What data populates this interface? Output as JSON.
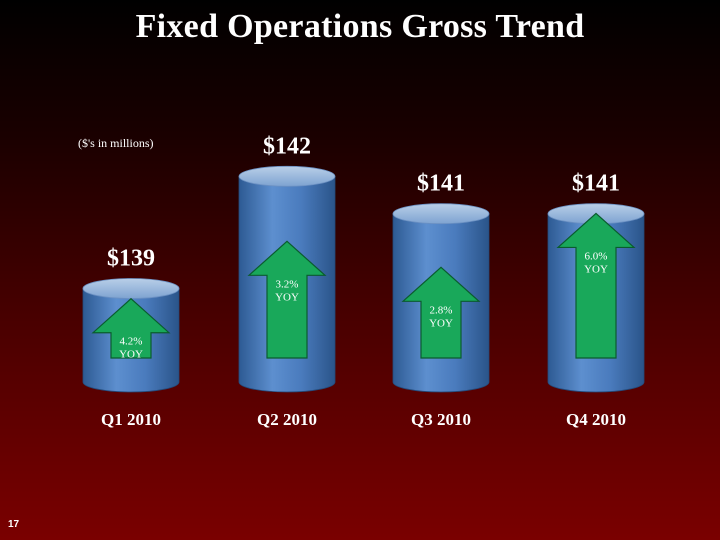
{
  "slide": {
    "title": "Fixed Operations Gross Trend",
    "units_note": "($'s in millions)",
    "page_number": "17"
  },
  "chart_data": {
    "type": "bar",
    "title": "Fixed Operations Gross Trend",
    "categories": [
      "Q1 2010",
      "Q2 2010",
      "Q3 2010",
      "Q4 2010"
    ],
    "values": [
      139,
      142,
      141,
      141
    ],
    "value_labels": [
      "$139",
      "$142",
      "$141",
      "$141"
    ],
    "yoy": [
      {
        "pct": "4.2%",
        "label": "YOY"
      },
      {
        "pct": "3.2%",
        "label": "YOY"
      },
      {
        "pct": "2.8%",
        "label": "YOY"
      },
      {
        "pct": "6.0%",
        "label": "YOY"
      }
    ],
    "yoy_arrow_heights": [
      0.42,
      0.47,
      0.42,
      0.74
    ],
    "colors": {
      "bar": "#4f7fbd",
      "bar_dark": "#2f5d96",
      "bar_top": "#9ab8dc",
      "arrow": "#19a85a",
      "arrow_border": "#0a5c2e",
      "label": "#ffffff"
    }
  }
}
